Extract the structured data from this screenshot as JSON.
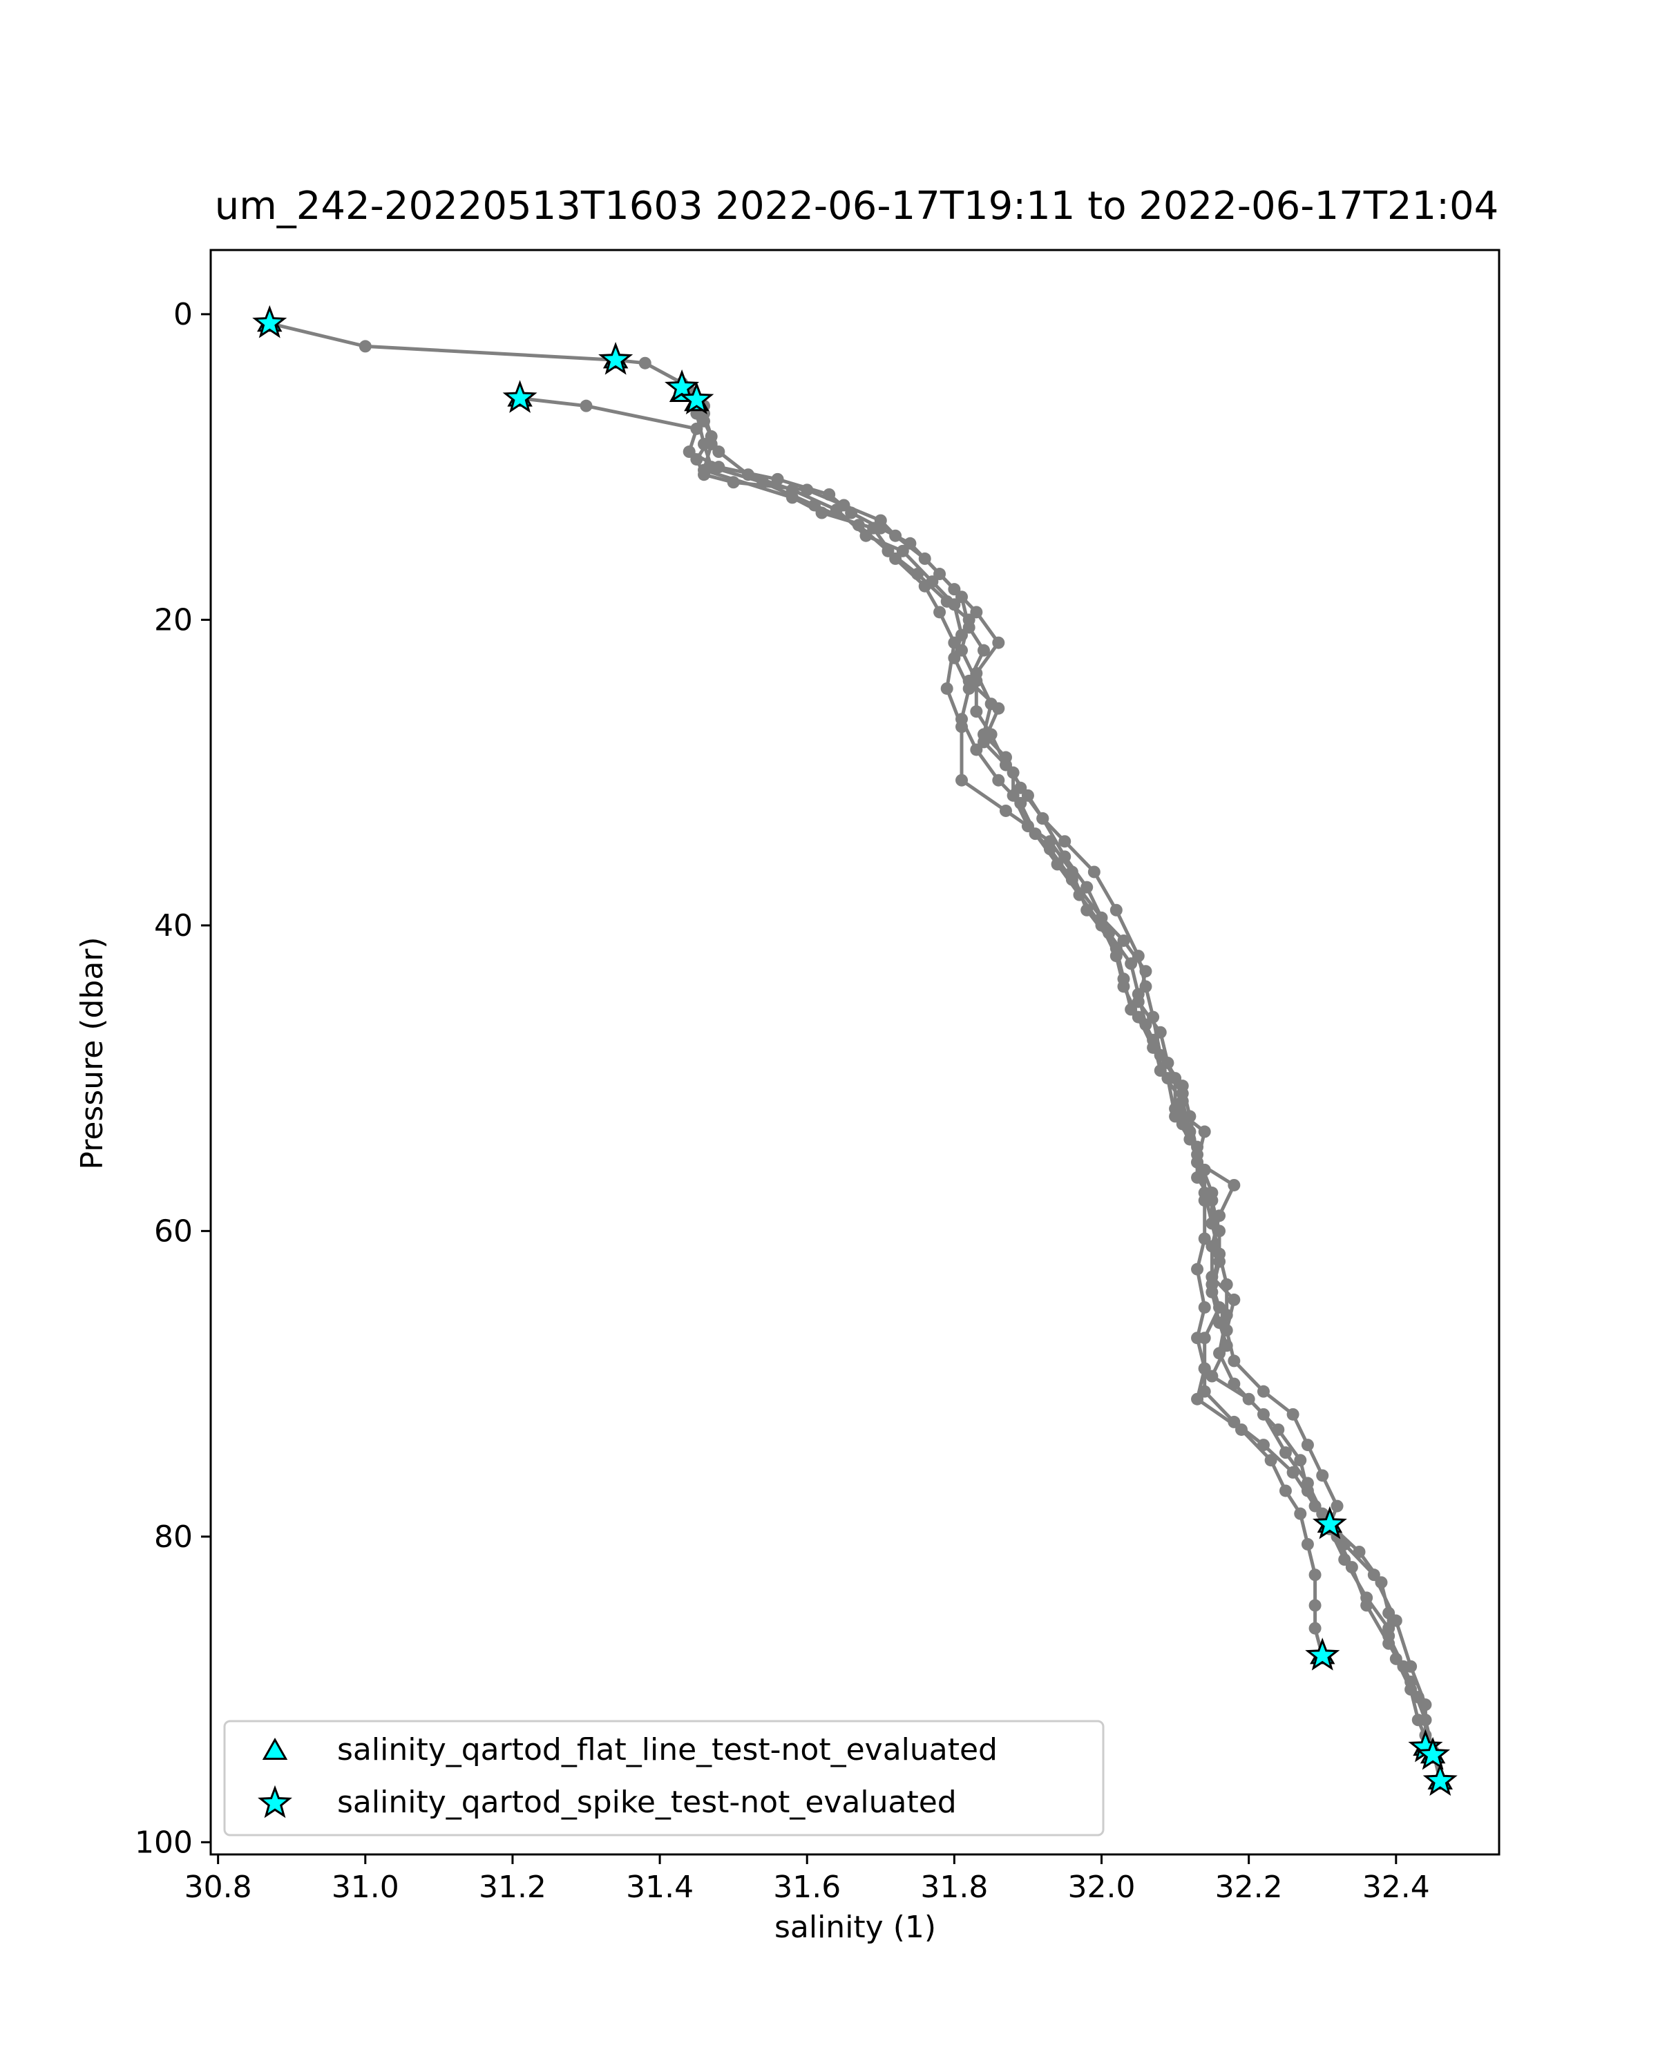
{
  "chart_data": {
    "type": "line",
    "title": "um_242-20220513T1603 2022-06-17T19:11 to 2022-06-17T21:04",
    "xlabel": "salinity (1)",
    "ylabel": "Pressure (dbar)",
    "xlim": [
      30.79,
      32.54
    ],
    "ylim": [
      100.8,
      -4.2
    ],
    "y_inverted": true,
    "grid": false,
    "xticks": [
      30.8,
      31.0,
      31.2,
      31.4,
      31.6,
      31.8,
      32.0,
      32.2,
      32.4
    ],
    "xtick_labels": [
      "30.8",
      "31.0",
      "31.2",
      "31.4",
      "31.6",
      "31.8",
      "32.0",
      "32.2",
      "32.4"
    ],
    "yticks": [
      0,
      20,
      40,
      60,
      80,
      100
    ],
    "ytick_labels": [
      "0",
      "20",
      "40",
      "60",
      "80",
      "100"
    ],
    "legend_position": "lower-left",
    "colors": {
      "profile": "#808080",
      "flag_fill": "#00ffff",
      "flag_edge": "#000000"
    },
    "series": [
      {
        "style": "line-markers",
        "values": [
          [
            [
              30.87,
              0.6
            ],
            [
              31.0,
              2.1
            ],
            [
              31.34,
              3.0
            ],
            [
              31.38,
              3.2
            ],
            [
              31.43,
              4.5
            ],
            [
              31.46,
              6.5
            ],
            [
              31.47,
              8.0
            ],
            [
              31.45,
              9.5
            ],
            [
              31.46,
              10.5
            ],
            [
              31.5,
              11.0
            ],
            [
              31.6,
              11.5
            ],
            [
              31.65,
              12.5
            ],
            [
              31.7,
              13.5
            ],
            [
              31.72,
              14.5
            ],
            [
              31.76,
              16.0
            ],
            [
              31.8,
              18.0
            ],
            [
              31.83,
              19.5
            ],
            [
              31.86,
              21.5
            ],
            [
              31.83,
              23.5
            ],
            [
              31.85,
              25.5
            ],
            [
              31.84,
              27.5
            ],
            [
              31.87,
              29.0
            ],
            [
              31.89,
              31.0
            ],
            [
              31.92,
              33.0
            ],
            [
              31.95,
              34.5
            ],
            [
              31.99,
              36.5
            ],
            [
              32.02,
              39.0
            ],
            [
              32.05,
              42.0
            ],
            [
              32.06,
              44.0
            ],
            [
              32.07,
              46.0
            ],
            [
              32.08,
              48.5
            ],
            [
              32.1,
              50.0
            ],
            [
              32.1,
              52.0
            ],
            [
              32.14,
              53.5
            ],
            [
              32.13,
              55.5
            ],
            [
              32.18,
              57.0
            ],
            [
              32.16,
              59.0
            ],
            [
              32.15,
              61.0
            ],
            [
              32.15,
              63.0
            ],
            [
              32.18,
              64.5
            ],
            [
              32.17,
              66.5
            ],
            [
              32.18,
              68.5
            ],
            [
              32.22,
              70.5
            ],
            [
              32.26,
              72.0
            ],
            [
              32.28,
              74.0
            ],
            [
              32.3,
              76.0
            ],
            [
              32.32,
              78.0
            ],
            [
              32.31,
              79.2
            ],
            [
              32.35,
              81.0
            ],
            [
              32.38,
              83.0
            ],
            [
              32.39,
              85.0
            ],
            [
              32.39,
              86.5
            ],
            [
              32.41,
              88.5
            ],
            [
              32.43,
              90.5
            ],
            [
              32.44,
              92.0
            ],
            [
              32.44,
              93.8
            ]
          ],
          [
            [
              31.21,
              5.5
            ],
            [
              31.3,
              6.0
            ],
            [
              31.45,
              7.5
            ],
            [
              31.44,
              9.0
            ],
            [
              31.48,
              10.0
            ],
            [
              31.56,
              10.8
            ],
            [
              31.63,
              11.8
            ],
            [
              31.66,
              13.0
            ],
            [
              31.7,
              14.0
            ],
            [
              31.74,
              15.0
            ],
            [
              31.78,
              17.0
            ],
            [
              31.81,
              18.5
            ],
            [
              31.82,
              20.5
            ],
            [
              31.84,
              22.0
            ],
            [
              31.82,
              24.0
            ],
            [
              31.86,
              25.8
            ],
            [
              31.84,
              28.0
            ],
            [
              31.88,
              30.0
            ],
            [
              31.88,
              31.5
            ],
            [
              31.9,
              33.5
            ],
            [
              31.93,
              35.0
            ],
            [
              31.96,
              37.0
            ],
            [
              32.0,
              39.5
            ],
            [
              32.03,
              41.0
            ],
            [
              32.06,
              43.0
            ],
            [
              32.05,
              45.0
            ],
            [
              32.08,
              47.0
            ],
            [
              32.09,
              49.0
            ],
            [
              32.11,
              51.0
            ],
            [
              32.11,
              53.0
            ],
            [
              32.13,
              54.5
            ],
            [
              32.13,
              56.5
            ],
            [
              32.15,
              58.0
            ],
            [
              32.16,
              60.0
            ],
            [
              32.16,
              62.0
            ],
            [
              32.15,
              64.0
            ],
            [
              32.16,
              66.0
            ],
            [
              32.17,
              67.5
            ],
            [
              32.15,
              69.5
            ],
            [
              32.2,
              71.0
            ],
            [
              32.24,
              73.0
            ],
            [
              32.27,
              75.0
            ],
            [
              32.28,
              77.0
            ],
            [
              32.31,
              79.5
            ],
            [
              32.33,
              81.5
            ],
            [
              32.36,
              84.0
            ],
            [
              32.39,
              86.0
            ],
            [
              32.4,
              88.0
            ],
            [
              32.42,
              90.0
            ],
            [
              32.43,
              92.0
            ],
            [
              32.45,
              94.3
            ]
          ],
          [
            [
              31.45,
              5.8
            ],
            [
              31.46,
              7.0
            ],
            [
              31.48,
              9.0
            ],
            [
              31.52,
              10.5
            ],
            [
              31.58,
              11.5
            ],
            [
              31.64,
              12.8
            ],
            [
              31.68,
              14.5
            ],
            [
              31.73,
              15.5
            ],
            [
              31.77,
              17.5
            ],
            [
              31.8,
              19.0
            ],
            [
              31.81,
              21.0
            ],
            [
              31.8,
              22.5
            ],
            [
              31.82,
              24.5
            ],
            [
              31.81,
              26.5
            ],
            [
              31.83,
              28.5
            ],
            [
              31.86,
              30.5
            ],
            [
              31.89,
              32.0
            ],
            [
              31.91,
              34.0
            ],
            [
              31.94,
              36.0
            ],
            [
              31.97,
              38.0
            ],
            [
              32.0,
              40.0
            ],
            [
              32.02,
              42.0
            ],
            [
              32.03,
              44.0
            ],
            [
              32.05,
              46.0
            ],
            [
              32.07,
              48.0
            ],
            [
              32.09,
              50.0
            ],
            [
              32.1,
              52.5
            ],
            [
              32.12,
              54.0
            ],
            [
              32.14,
              56.0
            ],
            [
              32.14,
              58.0
            ],
            [
              32.14,
              60.5
            ],
            [
              32.13,
              62.5
            ],
            [
              32.14,
              65.0
            ],
            [
              32.13,
              67.0
            ],
            [
              32.14,
              69.0
            ],
            [
              32.13,
              71.0
            ],
            [
              32.19,
              73.0
            ],
            [
              32.23,
              75.0
            ],
            [
              32.25,
              77.0
            ],
            [
              32.27,
              78.5
            ],
            [
              32.28,
              80.5
            ],
            [
              32.29,
              82.5
            ],
            [
              32.29,
              84.5
            ],
            [
              32.29,
              86.0
            ],
            [
              32.3,
              87.8
            ]
          ],
          [
            [
              31.44,
              5.0
            ],
            [
              31.45,
              6.5
            ],
            [
              31.46,
              8.5
            ],
            [
              31.47,
              10.0
            ],
            [
              31.54,
              11.0
            ],
            [
              31.61,
              12.5
            ],
            [
              31.67,
              13.8
            ],
            [
              31.71,
              15.5
            ],
            [
              31.75,
              17.0
            ],
            [
              31.79,
              18.8
            ],
            [
              31.82,
              20.0
            ],
            [
              31.81,
              22.0
            ],
            [
              31.83,
              24.0
            ],
            [
              31.83,
              26.0
            ],
            [
              31.85,
              27.5
            ],
            [
              31.87,
              29.5
            ],
            [
              31.9,
              31.5
            ],
            [
              31.92,
              33.0
            ],
            [
              31.95,
              35.5
            ],
            [
              31.98,
              37.5
            ],
            [
              32.01,
              40.5
            ],
            [
              32.04,
              42.5
            ],
            [
              32.05,
              44.5
            ],
            [
              32.06,
              46.5
            ],
            [
              32.08,
              48.5
            ],
            [
              32.11,
              50.5
            ],
            [
              32.12,
              52.5
            ],
            [
              32.13,
              55.0
            ],
            [
              32.15,
              57.5
            ],
            [
              32.15,
              59.5
            ],
            [
              32.16,
              61.5
            ],
            [
              32.17,
              63.5
            ],
            [
              32.17,
              65.5
            ],
            [
              32.16,
              68.0
            ],
            [
              32.18,
              70.0
            ],
            [
              32.22,
              72.0
            ],
            [
              32.25,
              74.5
            ],
            [
              32.28,
              76.5
            ],
            [
              32.3,
              78.5
            ],
            [
              32.32,
              80.0
            ],
            [
              32.34,
              82.0
            ],
            [
              32.36,
              84.5
            ],
            [
              32.39,
              87.0
            ],
            [
              32.42,
              89.5
            ],
            [
              32.44,
              92.0
            ],
            [
              32.45,
              94.0
            ],
            [
              32.46,
              96.0
            ]
          ],
          [
            [
              31.46,
              6.0
            ],
            [
              31.47,
              8.5
            ],
            [
              31.46,
              10.2
            ],
            [
              31.58,
              12.0
            ],
            [
              31.62,
              13.0
            ],
            [
              31.69,
              14.0
            ],
            [
              31.72,
              16.0
            ],
            [
              31.76,
              17.8
            ],
            [
              31.78,
              19.5
            ],
            [
              31.8,
              21.5
            ],
            [
              31.79,
              24.5
            ],
            [
              31.81,
              27.0
            ],
            [
              31.81,
              30.5
            ],
            [
              31.87,
              32.5
            ],
            [
              31.93,
              34.5
            ],
            [
              31.96,
              36.5
            ],
            [
              31.98,
              39.0
            ],
            [
              32.02,
              41.5
            ],
            [
              32.03,
              43.5
            ],
            [
              32.04,
              45.5
            ],
            [
              32.07,
              47.5
            ],
            [
              32.08,
              49.5
            ],
            [
              32.11,
              51.5
            ],
            [
              32.12,
              53.5
            ],
            [
              32.13,
              55.5
            ],
            [
              32.14,
              57.5
            ],
            [
              32.15,
              59.5
            ],
            [
              32.16,
              61.5
            ],
            [
              32.15,
              63.5
            ],
            [
              32.16,
              65.0
            ],
            [
              32.14,
              67.0
            ],
            [
              32.14,
              69.0
            ],
            [
              32.14,
              70.5
            ],
            [
              32.18,
              72.5
            ],
            [
              32.22,
              74.0
            ],
            [
              32.26,
              75.8
            ],
            [
              32.29,
              78.0
            ],
            [
              32.33,
              80.5
            ],
            [
              32.37,
              82.5
            ],
            [
              32.4,
              85.5
            ],
            [
              32.42,
              88.5
            ],
            [
              32.44,
              91.0
            ],
            [
              32.44,
              93.0
            ]
          ]
        ]
      },
      {
        "name": "salinity_qartod_flat_line_test-not_evaluated",
        "style": "triangle",
        "values": [
          [
            30.87,
            0.6
          ],
          [
            31.34,
            3.0
          ],
          [
            31.21,
            5.5
          ],
          [
            31.43,
            5.2
          ],
          [
            31.45,
            5.8
          ],
          [
            32.31,
            79.2
          ],
          [
            32.3,
            87.8
          ],
          [
            32.44,
            93.8
          ],
          [
            32.45,
            94.3
          ],
          [
            32.46,
            96.0
          ]
        ]
      },
      {
        "name": "salinity_qartod_spike_test-not_evaluated",
        "style": "star",
        "values": [
          [
            30.87,
            0.6
          ],
          [
            31.34,
            3.0
          ],
          [
            31.21,
            5.5
          ],
          [
            31.43,
            4.8
          ],
          [
            31.45,
            5.6
          ],
          [
            32.31,
            79.2
          ],
          [
            32.3,
            87.8
          ],
          [
            32.44,
            93.8
          ],
          [
            32.45,
            94.3
          ],
          [
            32.46,
            96.0
          ]
        ]
      }
    ]
  }
}
